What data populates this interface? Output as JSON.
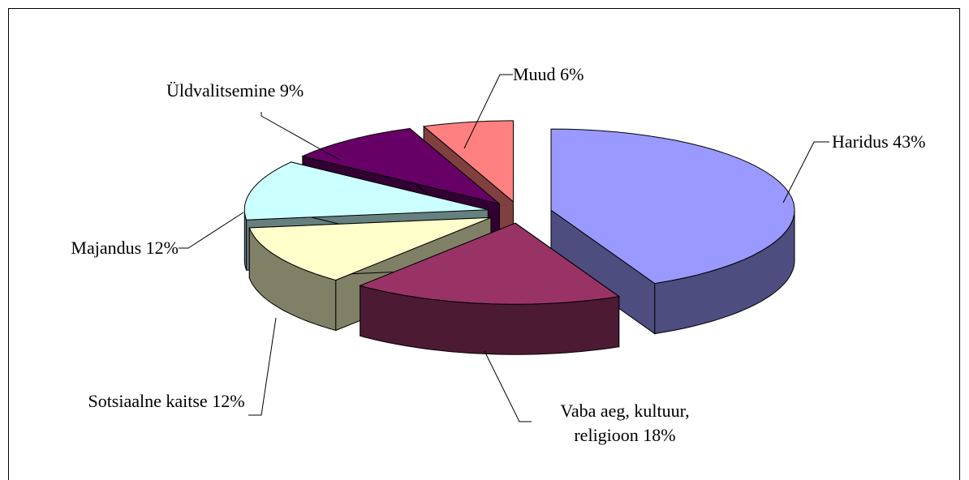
{
  "chart_data": {
    "type": "pie3d",
    "categories": [
      "Haridus",
      "Vaba aeg, kultuur, religioon",
      "Sotsiaalne kaitse",
      "Majandus",
      "Üldvalitsemine",
      "Muud"
    ],
    "values": [
      43,
      18,
      12,
      12,
      9,
      6
    ],
    "value_labels": [
      "43%",
      "18%",
      "12%",
      "12%",
      "9%",
      "6%"
    ],
    "colors": [
      "#9999ff",
      "#993366",
      "#ffffcc",
      "#ccffff",
      "#660066",
      "#ff8080"
    ],
    "side_colors": [
      "#4d4d80",
      "#4d1a33",
      "#808066",
      "#668080",
      "#330033",
      "#804040"
    ]
  }
}
